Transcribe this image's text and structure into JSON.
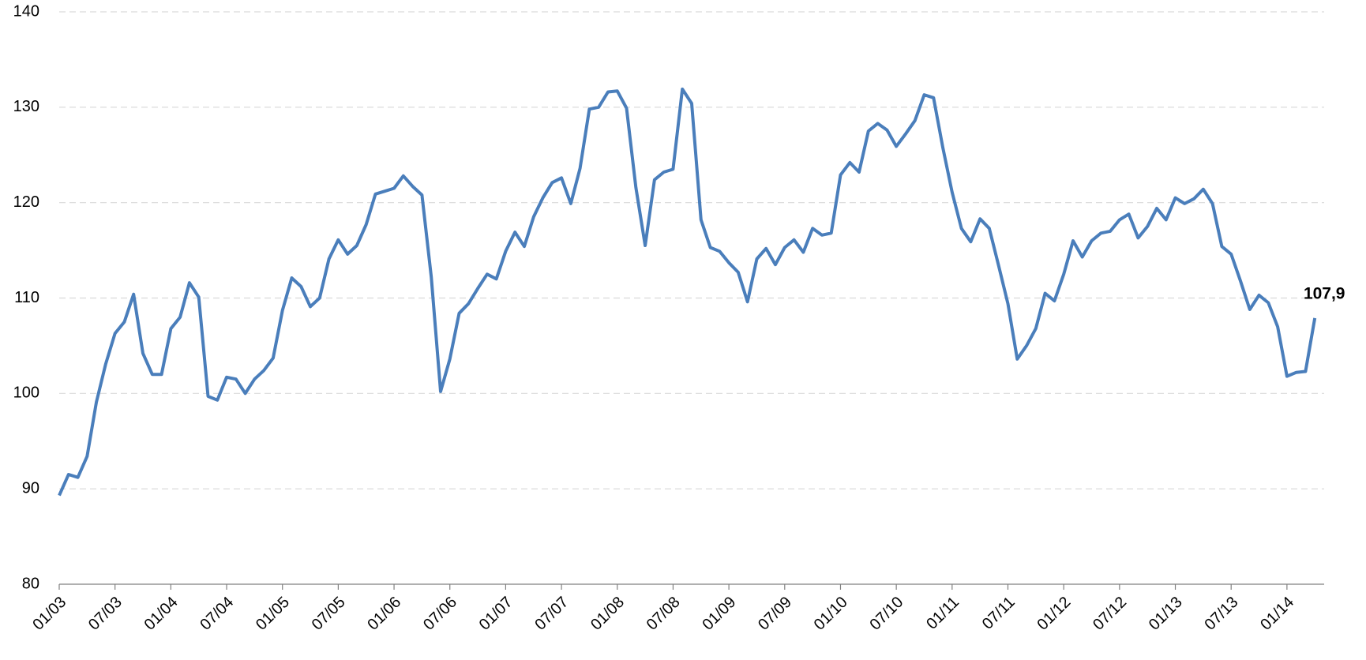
{
  "chart_data": {
    "type": "line",
    "categories": [
      "01/03",
      null,
      null,
      null,
      null,
      null,
      "07/03",
      null,
      null,
      null,
      null,
      null,
      "01/04",
      null,
      null,
      null,
      null,
      null,
      "07/04",
      null,
      null,
      null,
      null,
      null,
      "01/05",
      null,
      null,
      null,
      null,
      null,
      "07/05",
      null,
      null,
      null,
      null,
      null,
      "01/06",
      null,
      null,
      null,
      null,
      null,
      "07/06",
      null,
      null,
      null,
      null,
      null,
      "01/07",
      null,
      null,
      null,
      null,
      null,
      "07/07",
      null,
      null,
      null,
      null,
      null,
      "01/08",
      null,
      null,
      null,
      null,
      null,
      "07/08",
      null,
      null,
      null,
      null,
      null,
      "01/09",
      null,
      null,
      null,
      null,
      null,
      "07/09",
      null,
      null,
      null,
      null,
      null,
      "01/10",
      null,
      null,
      null,
      null,
      null,
      "07/10",
      null,
      null,
      null,
      null,
      null,
      "01/11",
      null,
      null,
      null,
      null,
      null,
      "07/11",
      null,
      null,
      null,
      null,
      null,
      "01/12",
      null,
      null,
      null,
      null,
      null,
      "07/12",
      null,
      null,
      null,
      null,
      null,
      "01/13",
      null,
      null,
      null,
      null,
      null,
      "07/13",
      null,
      null,
      null,
      null,
      null,
      "01/14",
      null,
      null,
      null
    ],
    "series": [
      {
        "name": null,
        "color": "#4a7ebb",
        "values": [
          89.3,
          91.5,
          91.2,
          93.4,
          99.1,
          103.1,
          106.3,
          107.5,
          110.4,
          104.2,
          102.0,
          102.0,
          106.8,
          108.0,
          111.6,
          110.1,
          99.7,
          99.3,
          101.7,
          101.5,
          100.0,
          101.5,
          102.4,
          103.7,
          108.7,
          112.1,
          111.2,
          109.1,
          110.0,
          114.1,
          116.1,
          114.6,
          115.5,
          117.7,
          120.9,
          121.2,
          121.5,
          122.8,
          121.7,
          120.8,
          112.2,
          100.2,
          103.6,
          108.4,
          109.4,
          111.0,
          112.5,
          112.0,
          114.9,
          116.9,
          115.4,
          118.5,
          120.5,
          122.1,
          122.6,
          119.9,
          123.6,
          129.8,
          130.0,
          131.6,
          131.7,
          129.9,
          121.6,
          115.5,
          122.4,
          123.2,
          123.5,
          131.9,
          130.4,
          118.2,
          115.3,
          114.9,
          113.7,
          112.7,
          109.6,
          114.1,
          115.2,
          113.5,
          115.3,
          116.1,
          114.8,
          117.3,
          116.6,
          116.8,
          122.9,
          124.2,
          123.2,
          127.5,
          128.3,
          127.6,
          125.9,
          127.2,
          128.6,
          131.3,
          131.0,
          125.8,
          121.1,
          117.3,
          115.9,
          118.3,
          117.3,
          113.4,
          109.4,
          103.6,
          105.0,
          106.8,
          110.5,
          109.7,
          112.5,
          116.0,
          114.3,
          116.0,
          116.8,
          117.0,
          118.2,
          118.8,
          116.3,
          117.5,
          119.4,
          118.2,
          120.5,
          119.9,
          120.4,
          121.4,
          119.9,
          115.4,
          114.6,
          111.8,
          108.8,
          110.3,
          109.5,
          107.0,
          101.8,
          102.2,
          102.3,
          107.9
        ],
        "value_labels": [
          null,
          null,
          null,
          null,
          null,
          null,
          null,
          null,
          null,
          null,
          null,
          null,
          null,
          null,
          null,
          null,
          null,
          null,
          null,
          null,
          null,
          null,
          null,
          null,
          null,
          null,
          null,
          null,
          null,
          null,
          null,
          null,
          null,
          null,
          null,
          null,
          null,
          null,
          null,
          null,
          null,
          null,
          null,
          null,
          null,
          null,
          null,
          null,
          null,
          null,
          null,
          null,
          null,
          null,
          null,
          null,
          null,
          null,
          null,
          null,
          null,
          null,
          null,
          null,
          null,
          null,
          null,
          null,
          null,
          null,
          null,
          null,
          null,
          null,
          null,
          null,
          null,
          null,
          null,
          null,
          null,
          null,
          null,
          null,
          null,
          null,
          null,
          null,
          null,
          null,
          null,
          null,
          null,
          null,
          null,
          null,
          null,
          null,
          null,
          null,
          null,
          null,
          null,
          null,
          null,
          null,
          null,
          null,
          null,
          null,
          null,
          null,
          null,
          null,
          null,
          null,
          null,
          null,
          null,
          null,
          null,
          null,
          null,
          null,
          null,
          null,
          null,
          null,
          null,
          null,
          null,
          null,
          null,
          null,
          null,
          "107,9"
        ]
      }
    ],
    "ylim": [
      80,
      140
    ],
    "yticks": [
      80,
      90,
      100,
      110,
      120,
      130,
      140
    ],
    "grid": true
  }
}
